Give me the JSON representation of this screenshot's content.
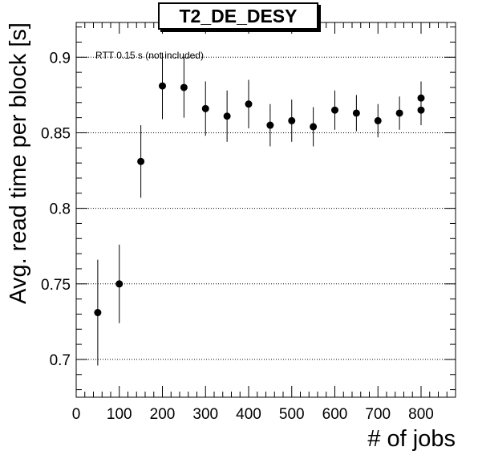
{
  "chart_data": {
    "type": "scatter",
    "title": "T2_DE_DESY",
    "xlabel": "# of jobs",
    "ylabel": "Avg. read time per block [s]",
    "annotation": "RTT 0.15 s (not included)",
    "xlim": [
      0,
      880
    ],
    "ylim": [
      0.675,
      0.923
    ],
    "x_ticks": [
      0,
      100,
      200,
      300,
      400,
      500,
      600,
      700,
      800
    ],
    "y_ticks": [
      0.7,
      0.75,
      0.8,
      0.85,
      0.9
    ],
    "y_tick_labels": [
      "0.7",
      "0.75",
      "0.8",
      "0.85",
      "0.9"
    ],
    "y_grid": true,
    "series": [
      {
        "points": [
          {
            "x": 50,
            "y": 0.731,
            "err": 0.035
          },
          {
            "x": 100,
            "y": 0.75,
            "err": 0.026
          },
          {
            "x": 150,
            "y": 0.831,
            "err": 0.024
          },
          {
            "x": 200,
            "y": 0.881,
            "err": 0.022
          },
          {
            "x": 250,
            "y": 0.88,
            "err": 0.02
          },
          {
            "x": 300,
            "y": 0.866,
            "err": 0.018
          },
          {
            "x": 350,
            "y": 0.861,
            "err": 0.017
          },
          {
            "x": 400,
            "y": 0.869,
            "err": 0.016
          },
          {
            "x": 450,
            "y": 0.855,
            "err": 0.014
          },
          {
            "x": 500,
            "y": 0.858,
            "err": 0.014
          },
          {
            "x": 550,
            "y": 0.854,
            "err": 0.013
          },
          {
            "x": 600,
            "y": 0.865,
            "err": 0.013
          },
          {
            "x": 650,
            "y": 0.863,
            "err": 0.012
          },
          {
            "x": 700,
            "y": 0.858,
            "err": 0.011
          },
          {
            "x": 750,
            "y": 0.863,
            "err": 0.011
          },
          {
            "x": 800,
            "y": 0.873,
            "err": 0.011
          },
          {
            "x": 800,
            "y": 0.865,
            "err": 0.01
          }
        ]
      }
    ]
  }
}
